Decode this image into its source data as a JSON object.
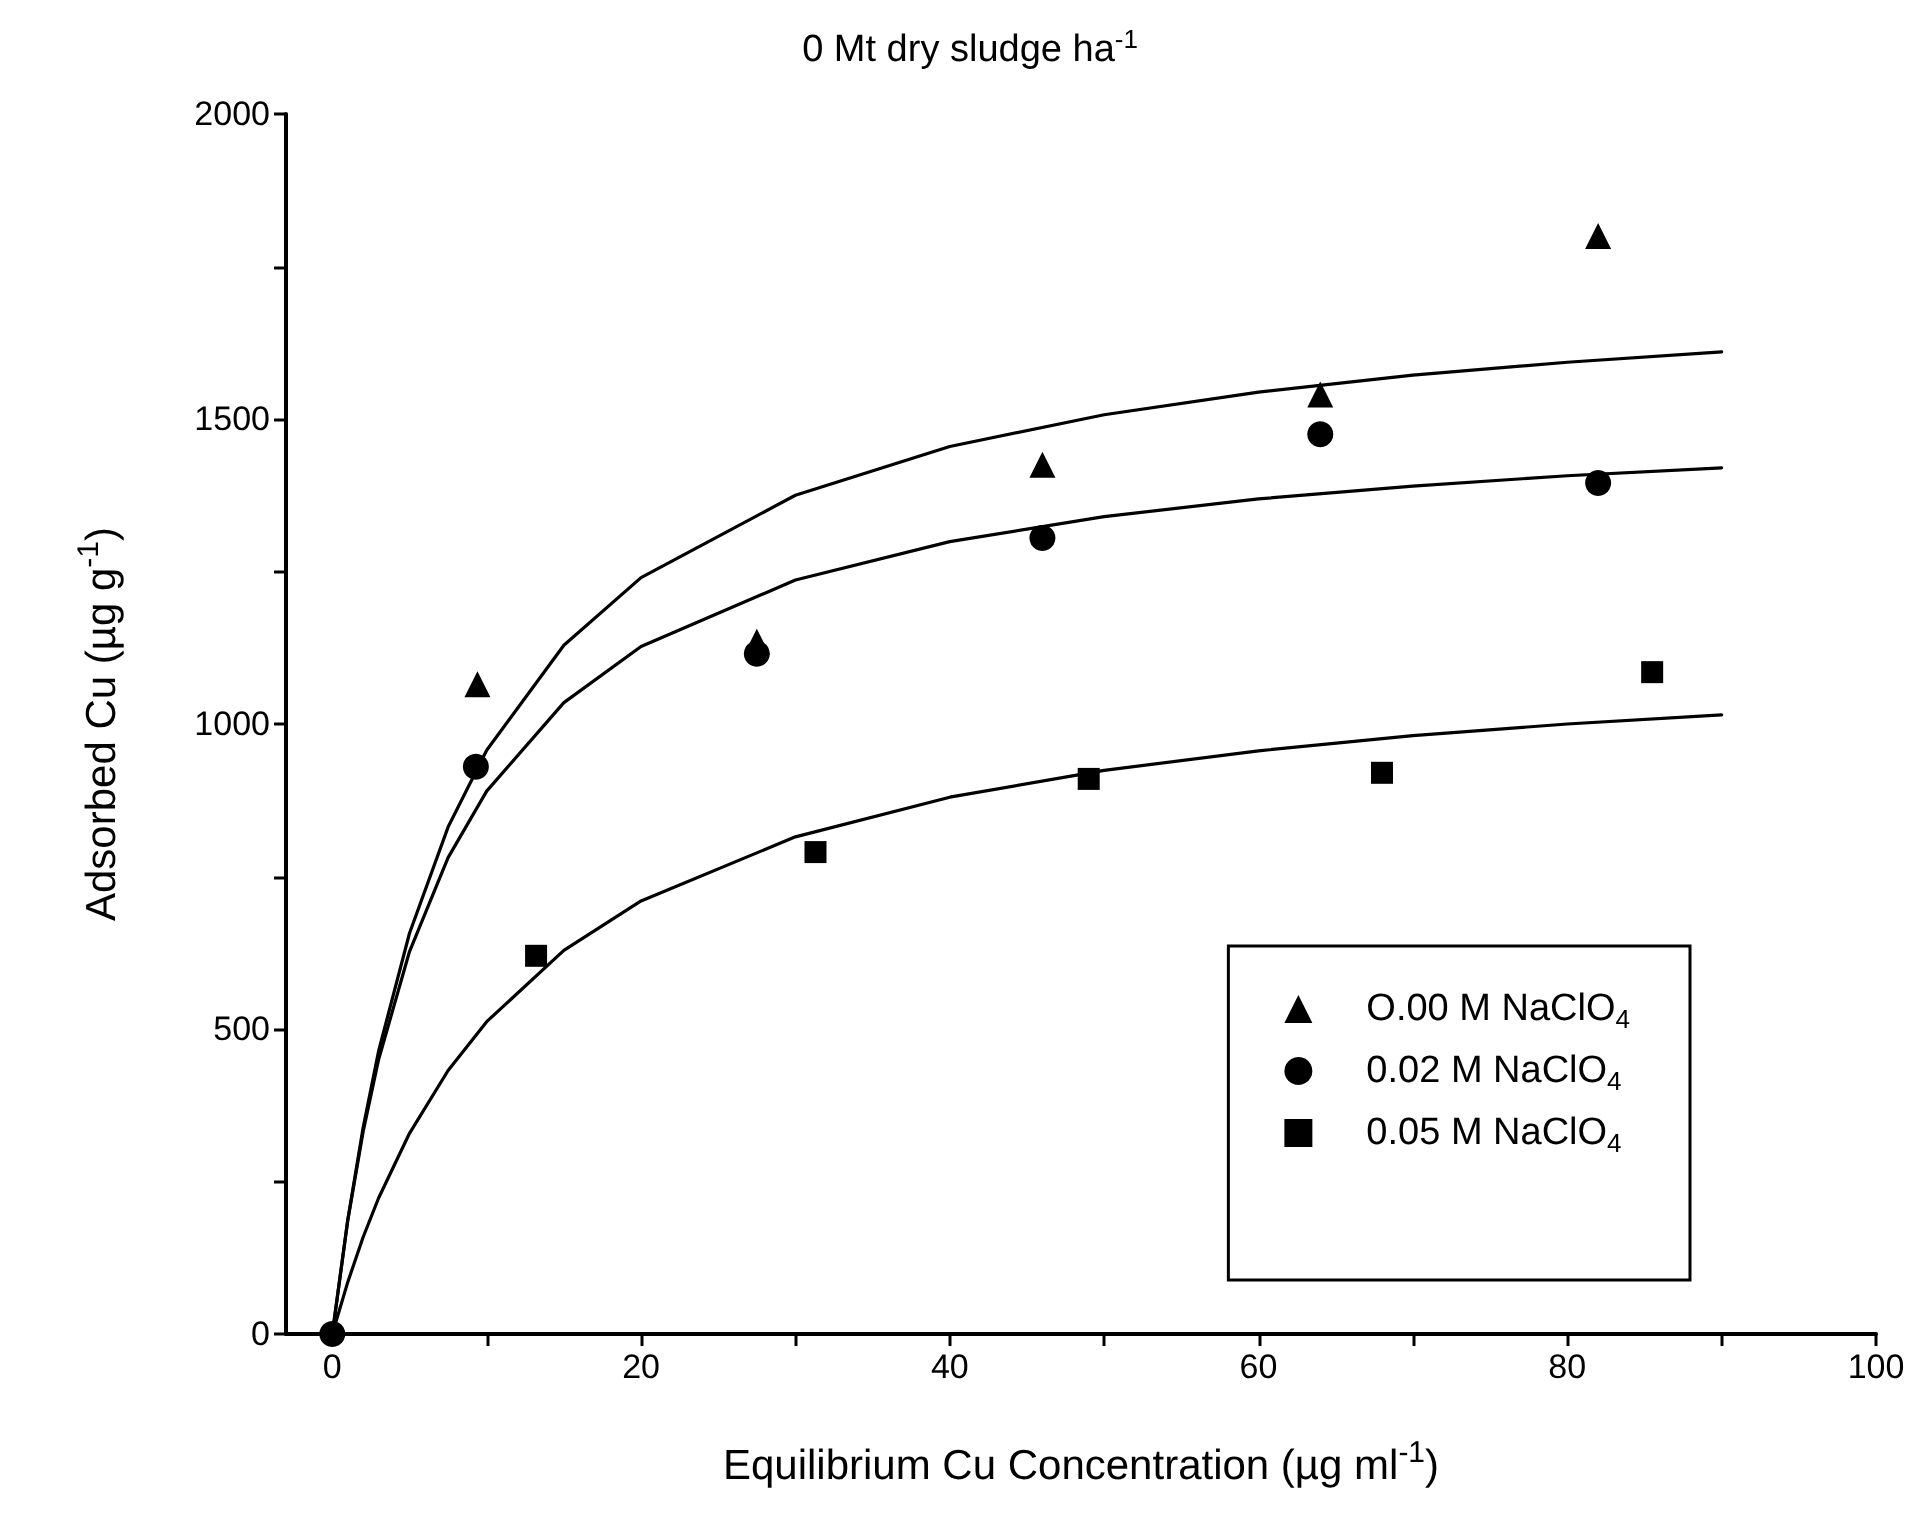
{
  "chart_data": {
    "type": "scatter",
    "title": "0 Mt dry sludge ha$^{-1}$",
    "xlabel": "Equilibrium Cu Concentration (µg ml$^{-1}$)",
    "ylabel": "Adsorbed Cu (µg g$^{-1}$)",
    "xlim": [
      -3,
      100
    ],
    "ylim": [
      0,
      2000
    ],
    "xticks": [
      0,
      {
        "value": 10,
        "label": null
      },
      20,
      {
        "value": 30,
        "label": null
      },
      40,
      {
        "value": 50,
        "label": null
      },
      60,
      {
        "value": 70,
        "label": null
      },
      80,
      {
        "value": 90,
        "label": null
      },
      100
    ],
    "yticks": [
      0,
      {
        "value": 250,
        "label": null
      },
      500,
      {
        "value": 750,
        "label": null
      },
      1000,
      {
        "value": 1250,
        "label": null
      },
      1500,
      {
        "value": 1750,
        "label": null
      },
      2000
    ],
    "grid": false,
    "legend": "bottom right",
    "series": [
      {
        "name": "O.00 M NaClO$_{4}$",
        "color": "#000000",
        "marker": "triangle",
        "x": [
          9.4,
          27.5,
          46,
          64,
          82
        ],
        "values": [
          1065,
          1135,
          1425,
          1540,
          1800
        ]
      },
      {
        "name": "0.02 M NaClO$_{4}$",
        "color": "#000000",
        "marker": "circle",
        "x": [
          0,
          9.3,
          27.5,
          46,
          64,
          82
        ],
        "values": [
          0,
          930,
          1115,
          1305,
          1475,
          1395
        ]
      },
      {
        "name": "0.05 M NaClO$_{4}$",
        "color": "#000000",
        "marker": "square",
        "x": [
          13.2,
          31.3,
          49,
          68,
          85.5
        ],
        "values": [
          620,
          790,
          910,
          920,
          1085
        ]
      },
      {
        "type": "line",
        "color": "#000000",
        "marker": "none",
        "line_style": "solid",
        "x": [
          0,
          1,
          2,
          3,
          5,
          7.5,
          10,
          15,
          20,
          30,
          40,
          50,
          60,
          70,
          80,
          90
        ],
        "values": [
          0,
          187,
          339,
          464,
          657,
          831,
          957,
          1129,
          1240,
          1375,
          1455,
          1507,
          1544,
          1572,
          1593,
          1610
        ]
      },
      {
        "type": "line",
        "color": "#000000",
        "marker": "none",
        "line_style": "solid",
        "x": [
          0,
          1,
          2,
          3,
          5,
          7.5,
          10,
          15,
          20,
          30,
          40,
          50,
          60,
          70,
          80,
          90
        ],
        "values": [
          0,
          186,
          332,
          450,
          627,
          781,
          890,
          1035,
          1127,
          1236,
          1299,
          1340,
          1369,
          1390,
          1407,
          1420
        ]
      },
      {
        "type": "line",
        "color": "#000000",
        "marker": "none",
        "line_style": "solid",
        "x": [
          0,
          1,
          2,
          3,
          5,
          7.5,
          10,
          15,
          20,
          30,
          40,
          50,
          60,
          70,
          80,
          90
        ],
        "values": [
          0,
          85,
          159,
          223,
          329,
          432,
          512,
          629,
          710,
          815,
          880,
          924,
          956,
          981,
          1000,
          1015
        ]
      }
    ]
  }
}
